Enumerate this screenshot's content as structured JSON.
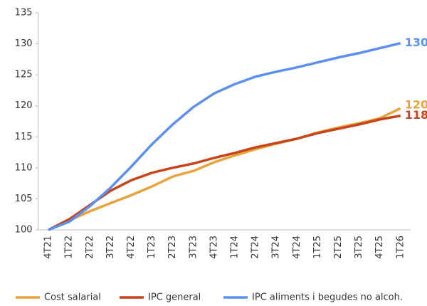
{
  "chart_data": {
    "type": "line",
    "categories": [
      "4T21",
      "1T22",
      "2T22",
      "3T22",
      "4T22",
      "1T23",
      "2T23",
      "3T23",
      "4T23",
      "1T24",
      "2T24",
      "3T24",
      "4T24",
      "1T25",
      "2T25",
      "3T25",
      "4T25",
      "1T26"
    ],
    "series": [
      {
        "name": "Cost salarial",
        "color": "#e8a33d",
        "values": [
          100,
          101.5,
          103,
          104.3,
          105.6,
          107,
          108.6,
          109.5,
          110.9,
          112,
          113,
          113.9,
          114.7,
          115.7,
          116.5,
          117.2,
          118,
          119.6
        ],
        "value_labels": [
          null,
          null,
          null,
          null,
          null,
          null,
          null,
          null,
          null,
          null,
          null,
          null,
          null,
          null,
          null,
          null,
          null,
          "120"
        ]
      },
      {
        "name": "IPC general",
        "color": "#c8441a",
        "values": [
          100,
          101.7,
          104,
          106.3,
          108,
          109.2,
          110,
          110.7,
          111.6,
          112.4,
          113.3,
          114,
          114.7,
          115.6,
          116.3,
          117,
          117.8,
          118.4
        ],
        "value_labels": [
          null,
          null,
          null,
          null,
          null,
          null,
          null,
          null,
          null,
          null,
          null,
          null,
          null,
          null,
          null,
          null,
          null,
          "118"
        ]
      },
      {
        "name": "IPC aliments i begudes no alcoh.",
        "color": "#5b8ff0",
        "values": [
          100,
          101.3,
          103.8,
          106.8,
          110.2,
          113.8,
          117,
          119.8,
          122,
          123.5,
          124.7,
          125.5,
          126.2,
          127,
          127.8,
          128.5,
          129.3,
          130.1
        ],
        "value_labels": [
          null,
          null,
          null,
          null,
          null,
          null,
          null,
          null,
          null,
          null,
          null,
          null,
          null,
          null,
          null,
          null,
          null,
          "130"
        ]
      }
    ],
    "ylim": [
      100,
      135
    ],
    "yticks": [
      100,
      105,
      110,
      115,
      120,
      125,
      130,
      135
    ],
    "grid": false,
    "legend": "bottom"
  }
}
